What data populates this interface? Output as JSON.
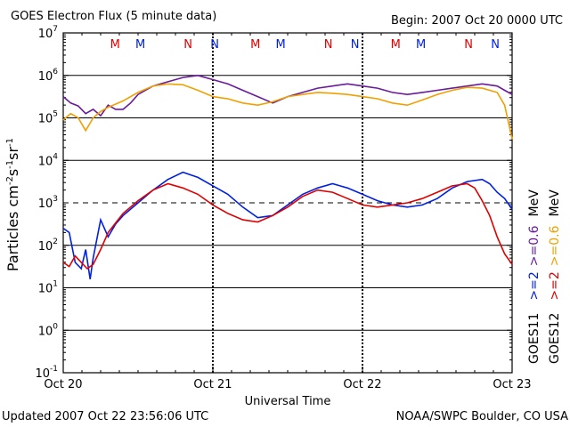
{
  "chart_data": {
    "type": "line",
    "title": "GOES Electron Flux (5 minute data)",
    "begin": "Begin: 2007 Oct 20 0000 UTC",
    "xlabel": "Universal Time",
    "ylabel_main": "Particles cm",
    "ylabel_sup1": "-2",
    "ylabel_mid1": "s",
    "ylabel_sup2": "-1",
    "ylabel_mid2": "sr",
    "ylabel_sup3": "-1",
    "updated": "Updated 2007 Oct 22 23:56:06 UTC",
    "credit": "NOAA/SWPC Boulder, CO USA",
    "x_range_days": [
      0,
      3
    ],
    "x_ticks": [
      {
        "day": 0,
        "label": "Oct 20"
      },
      {
        "day": 1,
        "label": "Oct 21"
      },
      {
        "day": 2,
        "label": "Oct 22"
      },
      {
        "day": 3,
        "label": "Oct 23"
      }
    ],
    "y_scale": "log",
    "y_exp_range": [
      -1,
      7
    ],
    "y_ticks": [
      {
        "exp": 7,
        "base": "10",
        "sup": "7"
      },
      {
        "exp": 6,
        "base": "10",
        "sup": "6"
      },
      {
        "exp": 5,
        "base": "10",
        "sup": "5"
      },
      {
        "exp": 4,
        "base": "10",
        "sup": "4"
      },
      {
        "exp": 3,
        "base": "10",
        "sup": "3"
      },
      {
        "exp": 2,
        "base": "10",
        "sup": "2"
      },
      {
        "exp": 1,
        "base": "10",
        "sup": "1"
      },
      {
        "exp": 0,
        "base": "10",
        "sup": "0"
      },
      {
        "exp": -1,
        "base": "10",
        "sup": "-1"
      }
    ],
    "hlines_solid": [
      6,
      5,
      4,
      2,
      1,
      0
    ],
    "hline_dashed": 3,
    "noon_midnight_markers": [
      {
        "day": 0.37,
        "letter": "M",
        "color": "#e00000"
      },
      {
        "day": 0.55,
        "letter": "M",
        "color": "#0020e0"
      },
      {
        "day": 0.89,
        "letter": "N",
        "color": "#e00000"
      },
      {
        "day": 1.08,
        "letter": "N",
        "color": "#0020e0"
      },
      {
        "day": 1.37,
        "letter": "M",
        "color": "#e00000"
      },
      {
        "day": 1.55,
        "letter": "M",
        "color": "#0020e0"
      },
      {
        "day": 1.89,
        "letter": "N",
        "color": "#e00000"
      },
      {
        "day": 2.08,
        "letter": "N",
        "color": "#0020e0"
      },
      {
        "day": 2.37,
        "letter": "M",
        "color": "#e00000"
      },
      {
        "day": 2.55,
        "letter": "M",
        "color": "#0020e0"
      },
      {
        "day": 2.89,
        "letter": "N",
        "color": "#e00000"
      },
      {
        "day": 3.08,
        "letter": "N",
        "color": "#0020e0"
      }
    ],
    "legend": [
      {
        "sat": "GOES11",
        "low": ">=2",
        "high": ">=0.6",
        "low_color": "#0020e0",
        "high_color": "#6a1b9a"
      },
      {
        "sat": "GOES12",
        "low": ">=2",
        "high": ">=0.6",
        "low_color": "#e00000",
        "high_color": "#f0a000"
      }
    ],
    "legend_unit": "MeV",
    "series": [
      {
        "key": "goes11_06",
        "color": "#6a1b9a",
        "points": [
          [
            0,
            5.5
          ],
          [
            0.05,
            5.35
          ],
          [
            0.1,
            5.28
          ],
          [
            0.15,
            5.1
          ],
          [
            0.2,
            5.2
          ],
          [
            0.25,
            5.05
          ],
          [
            0.3,
            5.3
          ],
          [
            0.35,
            5.2
          ],
          [
            0.4,
            5.2
          ],
          [
            0.45,
            5.35
          ],
          [
            0.5,
            5.55
          ],
          [
            0.6,
            5.75
          ],
          [
            0.7,
            5.85
          ],
          [
            0.8,
            5.95
          ],
          [
            0.9,
            6.0
          ],
          [
            1.0,
            5.9
          ],
          [
            1.1,
            5.8
          ],
          [
            1.2,
            5.65
          ],
          [
            1.3,
            5.5
          ],
          [
            1.4,
            5.35
          ],
          [
            1.5,
            5.5
          ],
          [
            1.6,
            5.6
          ],
          [
            1.7,
            5.7
          ],
          [
            1.8,
            5.75
          ],
          [
            1.9,
            5.8
          ],
          [
            2.0,
            5.75
          ],
          [
            2.1,
            5.7
          ],
          [
            2.2,
            5.6
          ],
          [
            2.3,
            5.55
          ],
          [
            2.4,
            5.6
          ],
          [
            2.5,
            5.65
          ],
          [
            2.6,
            5.7
          ],
          [
            2.7,
            5.75
          ],
          [
            2.8,
            5.8
          ],
          [
            2.9,
            5.75
          ],
          [
            2.95,
            5.65
          ],
          [
            3.0,
            5.55
          ]
        ]
      },
      {
        "key": "goes12_06",
        "color": "#f0a000",
        "points": [
          [
            0,
            4.95
          ],
          [
            0.05,
            5.1
          ],
          [
            0.1,
            5.0
          ],
          [
            0.15,
            4.7
          ],
          [
            0.2,
            5.0
          ],
          [
            0.25,
            5.15
          ],
          [
            0.3,
            5.25
          ],
          [
            0.4,
            5.4
          ],
          [
            0.5,
            5.6
          ],
          [
            0.6,
            5.75
          ],
          [
            0.7,
            5.8
          ],
          [
            0.8,
            5.78
          ],
          [
            0.9,
            5.65
          ],
          [
            1.0,
            5.5
          ],
          [
            1.1,
            5.45
          ],
          [
            1.2,
            5.35
          ],
          [
            1.3,
            5.3
          ],
          [
            1.4,
            5.38
          ],
          [
            1.5,
            5.5
          ],
          [
            1.6,
            5.55
          ],
          [
            1.7,
            5.6
          ],
          [
            1.8,
            5.58
          ],
          [
            1.9,
            5.55
          ],
          [
            2.0,
            5.5
          ],
          [
            2.1,
            5.45
          ],
          [
            2.2,
            5.35
          ],
          [
            2.3,
            5.3
          ],
          [
            2.4,
            5.42
          ],
          [
            2.5,
            5.55
          ],
          [
            2.6,
            5.65
          ],
          [
            2.7,
            5.72
          ],
          [
            2.8,
            5.7
          ],
          [
            2.9,
            5.6
          ],
          [
            2.95,
            5.3
          ],
          [
            3.0,
            4.5
          ]
        ]
      },
      {
        "key": "goes11_2",
        "color": "#0020e0",
        "points": [
          [
            0,
            2.4
          ],
          [
            0.04,
            2.3
          ],
          [
            0.08,
            1.6
          ],
          [
            0.12,
            1.45
          ],
          [
            0.15,
            1.9
          ],
          [
            0.18,
            1.2
          ],
          [
            0.2,
            1.7
          ],
          [
            0.25,
            2.6
          ],
          [
            0.3,
            2.2
          ],
          [
            0.35,
            2.5
          ],
          [
            0.4,
            2.7
          ],
          [
            0.5,
            3.0
          ],
          [
            0.6,
            3.3
          ],
          [
            0.7,
            3.55
          ],
          [
            0.8,
            3.72
          ],
          [
            0.9,
            3.6
          ],
          [
            1.0,
            3.4
          ],
          [
            1.1,
            3.2
          ],
          [
            1.2,
            2.9
          ],
          [
            1.3,
            2.65
          ],
          [
            1.4,
            2.7
          ],
          [
            1.5,
            2.95
          ],
          [
            1.6,
            3.2
          ],
          [
            1.7,
            3.35
          ],
          [
            1.8,
            3.45
          ],
          [
            1.9,
            3.35
          ],
          [
            2.0,
            3.2
          ],
          [
            2.1,
            3.05
          ],
          [
            2.2,
            2.95
          ],
          [
            2.3,
            2.9
          ],
          [
            2.4,
            2.95
          ],
          [
            2.5,
            3.1
          ],
          [
            2.6,
            3.35
          ],
          [
            2.7,
            3.5
          ],
          [
            2.8,
            3.55
          ],
          [
            2.85,
            3.45
          ],
          [
            2.9,
            3.25
          ],
          [
            2.95,
            3.1
          ],
          [
            3.0,
            2.85
          ]
        ]
      },
      {
        "key": "goes12_2",
        "color": "#e00000",
        "points": [
          [
            0,
            1.6
          ],
          [
            0.04,
            1.5
          ],
          [
            0.08,
            1.75
          ],
          [
            0.12,
            1.6
          ],
          [
            0.16,
            1.45
          ],
          [
            0.2,
            1.55
          ],
          [
            0.25,
            1.9
          ],
          [
            0.3,
            2.3
          ],
          [
            0.4,
            2.75
          ],
          [
            0.5,
            3.05
          ],
          [
            0.6,
            3.3
          ],
          [
            0.7,
            3.45
          ],
          [
            0.8,
            3.35
          ],
          [
            0.9,
            3.2
          ],
          [
            1.0,
            2.95
          ],
          [
            1.1,
            2.75
          ],
          [
            1.2,
            2.6
          ],
          [
            1.3,
            2.55
          ],
          [
            1.4,
            2.7
          ],
          [
            1.5,
            2.9
          ],
          [
            1.6,
            3.15
          ],
          [
            1.7,
            3.3
          ],
          [
            1.8,
            3.25
          ],
          [
            1.9,
            3.1
          ],
          [
            2.0,
            2.95
          ],
          [
            2.1,
            2.9
          ],
          [
            2.2,
            2.95
          ],
          [
            2.3,
            3.0
          ],
          [
            2.4,
            3.1
          ],
          [
            2.5,
            3.25
          ],
          [
            2.6,
            3.4
          ],
          [
            2.7,
            3.45
          ],
          [
            2.75,
            3.35
          ],
          [
            2.8,
            3.05
          ],
          [
            2.85,
            2.7
          ],
          [
            2.9,
            2.2
          ],
          [
            2.95,
            1.8
          ],
          [
            3.0,
            1.55
          ]
        ]
      }
    ]
  }
}
